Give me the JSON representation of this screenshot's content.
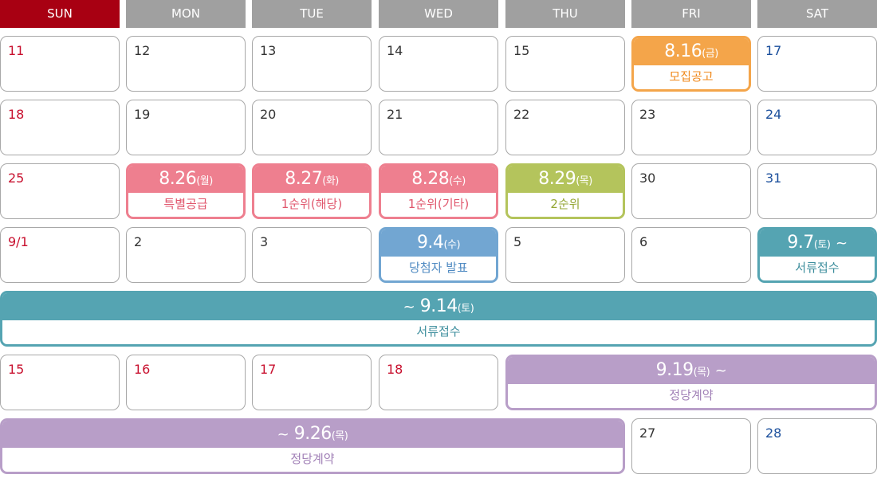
{
  "colors": {
    "sunday_header": "#a80012",
    "weekday_header": "#a0a0a0",
    "orange": "#f4a54a",
    "pink": "#ee7f8f",
    "green": "#b4c45c",
    "blue": "#72a6d2",
    "teal": "#55a4b2",
    "purple": "#b89ec8",
    "sunday_text": "#c8102e",
    "saturday_text": "#1b4f9c"
  },
  "weekdays": [
    "SUN",
    "MON",
    "TUE",
    "WED",
    "THU",
    "FRI",
    "SAT"
  ],
  "days": {
    "r1": [
      "11",
      "12",
      "13",
      "14",
      "15",
      "17"
    ],
    "r2": [
      "18",
      "19",
      "20",
      "21",
      "22",
      "23",
      "24"
    ],
    "r3": [
      "25",
      "30",
      "31"
    ],
    "r4": [
      "9/1",
      "2",
      "3",
      "5",
      "6"
    ],
    "r6": [
      "15",
      "16",
      "17",
      "18"
    ],
    "r7": [
      "27",
      "28"
    ]
  },
  "events": {
    "recruit_notice": {
      "date": "8.16",
      "weekday": "(금)",
      "label": "모집공고"
    },
    "special_supply": {
      "date": "8.26",
      "weekday": "(월)",
      "label": "특별공급"
    },
    "first_local": {
      "date": "8.27",
      "weekday": "(화)",
      "label": "1순위(해당)"
    },
    "first_other": {
      "date": "8.28",
      "weekday": "(수)",
      "label": "1순위(기타)"
    },
    "second": {
      "date": "8.29",
      "weekday": "(목)",
      "label": "2순위"
    },
    "winner": {
      "date": "9.4",
      "weekday": "(수)",
      "label": "당첨자 발표"
    },
    "docs_start": {
      "date": "9.7",
      "weekday": "(토)",
      "tilde": "~",
      "label": "서류접수"
    },
    "docs_end": {
      "prefix": "~",
      "date": "9.14",
      "weekday": "(토)",
      "label": "서류접수"
    },
    "contract_start": {
      "date": "9.19",
      "weekday": "(목)",
      "tilde": "~",
      "label": "정당계약"
    },
    "contract_end": {
      "prefix": "~",
      "date": "9.26",
      "weekday": "(목)",
      "label": "정당계약"
    }
  }
}
